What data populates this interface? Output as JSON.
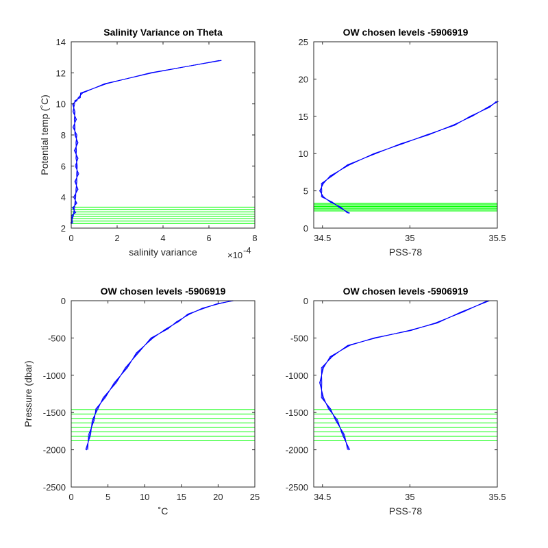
{
  "colors": {
    "profile": "#0000ff",
    "levels": "#00ff00",
    "axis": "#262626",
    "background": "#ffffff"
  },
  "chart_data": [
    {
      "type": "line",
      "title": "Salinity Variance on Theta",
      "xlabel": "salinity variance",
      "ylabel": "Potential temp (˚C)",
      "xlim": [
        0,
        8
      ],
      "ylim": [
        2,
        14
      ],
      "x_scale_label": "×10",
      "x_scale_exponent": "-4",
      "xticks": [
        "0",
        "2",
        "4",
        "6",
        "8"
      ],
      "yticks": [
        "2",
        "4",
        "6",
        "8",
        "10",
        "12",
        "14"
      ],
      "series": [
        {
          "x": [
            6.5,
            3.5,
            1.5,
            0.45,
            0.35,
            0.2,
            0.1,
            0.12,
            0.18,
            0.12,
            0.2,
            0.25,
            0.18,
            0.25,
            0.22,
            0.28,
            0.2,
            0.25,
            0.15,
            0.2,
            0.1,
            0.15,
            0.05,
            0.02
          ],
          "y": [
            12.8,
            12.0,
            11.3,
            10.7,
            10.4,
            10.2,
            10.0,
            9.5,
            9.0,
            8.5,
            8.0,
            7.5,
            7.0,
            6.5,
            6.0,
            5.5,
            5.0,
            4.5,
            4.0,
            3.6,
            3.3,
            3.0,
            2.8,
            2.3
          ]
        }
      ],
      "levels": [
        2.3,
        2.45,
        2.6,
        2.75,
        2.9,
        3.05,
        3.2,
        3.35
      ]
    },
    {
      "type": "line",
      "title": "OW chosen levels -5906919",
      "xlabel": "PSS-78",
      "ylabel": "",
      "xlim": [
        34.45,
        35.5
      ],
      "ylim": [
        0,
        25
      ],
      "xticks": [
        "34.5",
        "35",
        "35.5"
      ],
      "yticks": [
        "0",
        "5",
        "10",
        "15",
        "20",
        "25"
      ],
      "series": [
        {
          "x": [
            34.65,
            34.6,
            34.55,
            34.5,
            34.49,
            34.5,
            34.55,
            34.65,
            34.8,
            34.95,
            35.1,
            35.25,
            35.35,
            35.45,
            35.5
          ],
          "y": [
            2.0,
            2.8,
            3.5,
            4.2,
            5.0,
            6.0,
            7.0,
            8.5,
            10.0,
            11.3,
            12.5,
            13.8,
            15.0,
            16.2,
            17.0
          ]
        }
      ],
      "levels": [
        2.3,
        2.45,
        2.6,
        2.75,
        2.9,
        3.05,
        3.2,
        3.35
      ]
    },
    {
      "type": "line",
      "title": "OW chosen levels -5906919",
      "xlabel": "˚C",
      "ylabel": "Pressure (dbar)",
      "xlim": [
        0,
        25
      ],
      "ylim": [
        -2500,
        0
      ],
      "xticks": [
        "0",
        "5",
        "10",
        "15",
        "20",
        "25"
      ],
      "yticks": [
        "-2500",
        "-2000",
        "-1500",
        "-1000",
        "-500",
        "0"
      ],
      "series": [
        {
          "x": [
            2.1,
            2.5,
            3.0,
            3.5,
            4.5,
            6.0,
            7.5,
            9.0,
            11.0,
            13.0,
            14.5,
            16.0,
            18.0,
            20.0,
            22.0
          ],
          "y": [
            -2000,
            -1800,
            -1600,
            -1450,
            -1300,
            -1100,
            -900,
            -700,
            -500,
            -380,
            -280,
            -180,
            -100,
            -40,
            0
          ]
        }
      ],
      "levels": [
        -1460,
        -1520,
        -1580,
        -1640,
        -1700,
        -1760,
        -1820,
        -1880
      ]
    },
    {
      "type": "line",
      "title": "OW chosen levels -5906919",
      "xlabel": "PSS-78",
      "ylabel": "",
      "xlim": [
        34.45,
        35.5
      ],
      "ylim": [
        -2500,
        0
      ],
      "xticks": [
        "34.5",
        "35",
        "35.5"
      ],
      "yticks": [
        "-2500",
        "-2000",
        "-1500",
        "-1000",
        "-500",
        "0"
      ],
      "series": [
        {
          "x": [
            34.65,
            34.62,
            34.58,
            34.54,
            34.5,
            34.49,
            34.5,
            34.55,
            34.65,
            34.8,
            35.0,
            35.15,
            35.3,
            35.45
          ],
          "y": [
            -2000,
            -1800,
            -1600,
            -1450,
            -1300,
            -1100,
            -900,
            -750,
            -600,
            -500,
            -400,
            -300,
            -150,
            0
          ]
        }
      ],
      "levels": [
        -1460,
        -1520,
        -1580,
        -1640,
        -1700,
        -1760,
        -1820,
        -1880
      ]
    }
  ]
}
